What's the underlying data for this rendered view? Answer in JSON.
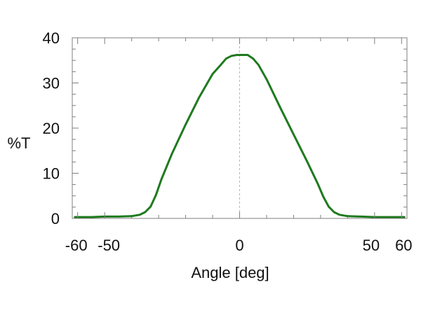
{
  "chart_data": {
    "type": "line",
    "title": "",
    "xlabel": "Angle [deg]",
    "ylabel": "%T",
    "xlim": [
      -62,
      62
    ],
    "ylim": [
      0,
      40
    ],
    "x_ticks": [
      -60,
      -50,
      0,
      50,
      60
    ],
    "x_tick_labels": [
      "-60",
      "-50",
      "0",
      "50",
      "60"
    ],
    "y_ticks": [
      0,
      10,
      20,
      30,
      40
    ],
    "y_tick_labels": [
      "0",
      "10",
      "20",
      "30",
      "40"
    ],
    "x_minor_ticks": [
      -40,
      -30,
      -20,
      -10,
      10,
      20,
      30,
      40
    ],
    "y_minor_ticks": [
      2.5,
      5,
      7.5,
      12.5,
      15,
      17.5,
      22.5,
      25,
      27.5,
      32.5,
      35,
      37.5
    ],
    "grid": false,
    "reference_line_x": 0,
    "colors": {
      "series": "#1e7a1e",
      "axis": "#7f7f7f",
      "reference": "#b3b3b3"
    },
    "series": [
      {
        "x": [
          -61,
          -55,
          -50,
          -45,
          -40,
          -37,
          -35,
          -33,
          -31,
          -29,
          -25,
          -20,
          -15,
          -10,
          -7,
          -5,
          -3,
          -1,
          1,
          3,
          5,
          7,
          10,
          15,
          20,
          25,
          29,
          31,
          33,
          35,
          37,
          40,
          45,
          50,
          55,
          60,
          61
        ],
        "y": [
          0.3,
          0.3,
          0.4,
          0.4,
          0.5,
          0.8,
          1.4,
          2.6,
          5.2,
          8.6,
          14.4,
          20.8,
          26.8,
          32.0,
          34.0,
          35.4,
          36.0,
          36.2,
          36.2,
          36.2,
          35.4,
          34.0,
          30.8,
          24.6,
          18.6,
          12.6,
          7.6,
          4.8,
          2.6,
          1.4,
          0.8,
          0.5,
          0.4,
          0.3,
          0.3,
          0.3,
          0.3
        ]
      }
    ]
  }
}
